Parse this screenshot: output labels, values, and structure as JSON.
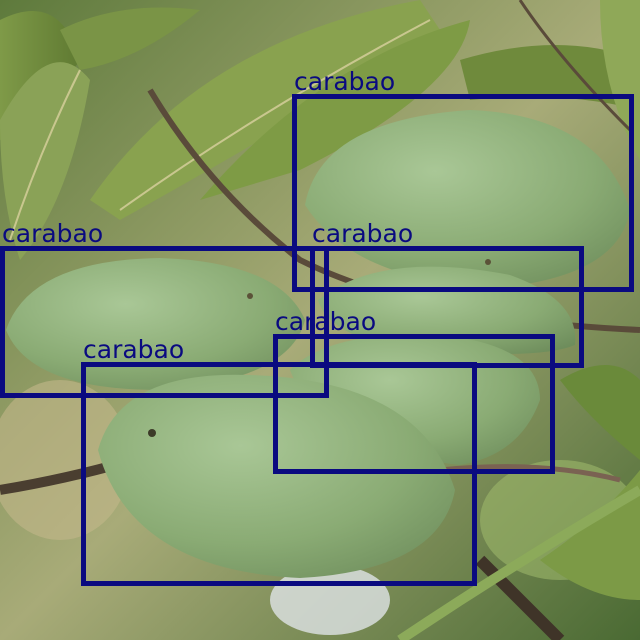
{
  "detections": [
    {
      "label": "carabao"
    },
    {
      "label": "carabao"
    },
    {
      "label": "carabao"
    },
    {
      "label": "carabao"
    },
    {
      "label": "carabao"
    }
  ],
  "colors": {
    "box": "#0a0a80",
    "mango": "#8fb07a",
    "leaf": "#6f8a3e"
  }
}
